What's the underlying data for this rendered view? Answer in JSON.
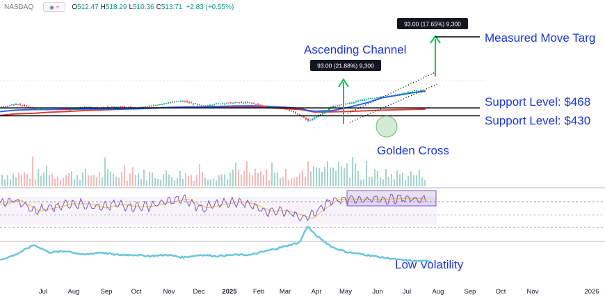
{
  "header": {
    "exchange": "NASDAQ",
    "open_label": "O",
    "open": "512.47",
    "high_label": "H",
    "high": "518.29",
    "low_label": "L",
    "low": "510.36",
    "close_label": "C",
    "close": "513.71",
    "change": "+2.83 (+0.55%)"
  },
  "colors": {
    "price_up": "#089981",
    "price_down": "#f23645",
    "ma50": "#2962ff",
    "ma200": "#e53935",
    "annotation_text": "#1a36d9",
    "arrow": "#00c853",
    "rsi": "#7e57c2",
    "rsi_ma": "#f5b942",
    "rsi_box": "#7e57c2",
    "volatility": "#6cc5dd",
    "volume_up": "#a5d6cc",
    "volume_down": "#f7b9b9"
  },
  "chart_data": {
    "type": "line",
    "panels": [
      "price",
      "rsi",
      "volatility"
    ],
    "x_labels": [
      "Jul",
      "Aug",
      "Sep",
      "Oct",
      "Nov",
      "Dec",
      "2025",
      "Feb",
      "Mar",
      "Apr",
      "May",
      "Jun",
      "Jul",
      "Aug",
      "Sep",
      "Oct",
      "Nov",
      "2026"
    ],
    "x_label_bold": "2025",
    "x": [
      "2024-07-01",
      "2024-07-15",
      "2024-08-01",
      "2024-08-15",
      "2024-09-01",
      "2024-09-15",
      "2024-10-01",
      "2024-10-15",
      "2024-11-01",
      "2024-11-15",
      "2024-12-01",
      "2024-12-15",
      "2025-01-01",
      "2025-01-15",
      "2025-02-01",
      "2025-02-15",
      "2025-03-01",
      "2025-03-15",
      "2025-04-01",
      "2025-04-08",
      "2025-04-15",
      "2025-05-01",
      "2025-05-15",
      "2025-06-01",
      "2025-06-15",
      "2025-07-01",
      "2025-07-15",
      "2025-07-25"
    ],
    "series": [
      {
        "values": [
          470,
          488,
          462,
          463,
          458,
          472,
          470,
          474,
          468,
          476,
          494,
          500,
          476,
          488,
          494,
          492,
          470,
          470,
          432,
          405,
          425,
          475,
          490,
          511,
          521,
          532,
          551,
          552
        ]
      },
      {
        "values": [
          450,
          457,
          460,
          460,
          462,
          462,
          463,
          463,
          463,
          466,
          470,
          472,
          473,
          475,
          477,
          478,
          476,
          472,
          466,
          456,
          452,
          455,
          470,
          492,
          516,
          530,
          542,
          548
        ]
      },
      {
        "values": [
          432,
          439,
          442,
          447,
          451,
          455,
          458,
          461,
          464,
          467,
          470,
          472,
          473,
          473,
          473,
          472,
          469,
          466,
          460,
          454,
          448,
          449,
          451,
          454,
          457,
          459,
          461,
          462
        ]
      },
      {
        "values": [
          55,
          63,
          42,
          48,
          56,
          56,
          48,
          55,
          50,
          52,
          60,
          65,
          48,
          54,
          60,
          55,
          42,
          43,
          33,
          27,
          40,
          64,
          65,
          64,
          65,
          66,
          66,
          64
        ]
      },
      {
        "values": [
          18,
          22,
          30,
          24,
          25,
          22,
          24,
          22,
          22,
          21,
          22,
          20,
          22,
          21,
          22,
          22,
          25,
          28,
          32,
          45,
          38,
          28,
          24,
          22,
          20,
          18,
          17,
          17
        ]
      }
    ],
    "annotations": {
      "measured_move": "Measured Move Targ",
      "ascending_channel": "Ascending Channel",
      "support_upper": "Support Level: $468",
      "support_lower": "Support Level: $430",
      "golden_cross": "Golden Cross",
      "low_volatility": "Low Volatility",
      "label_left": "93.00 (21.88%) 9,300",
      "label_right": "93.00 (17.65%) 9,300"
    }
  }
}
